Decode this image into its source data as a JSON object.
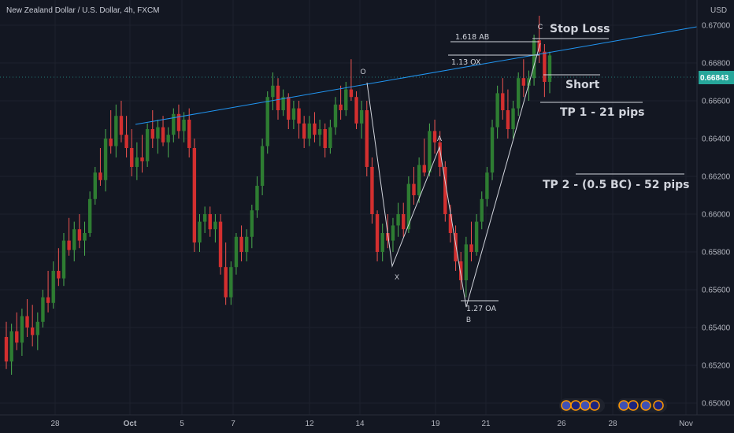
{
  "header": {
    "title": "New Zealand Dollar / U.S. Dollar, 4h, FXCM",
    "currency": "USD"
  },
  "colors": {
    "background": "#131722",
    "up": "#26a69a",
    "up_body": "#2e7d32",
    "down": "#ef5350",
    "down_body": "#d32f2f",
    "trendline": "#2196f3",
    "pattern": "#d1d4dc",
    "price_tag": "#26a69a"
  },
  "current_price": "0.66843",
  "chart_data": {
    "type": "candlestick",
    "ylim": [
      0.6496,
      0.6725
    ],
    "y_ticks": [
      "0.67000",
      "0.66800",
      "0.66600",
      "0.66400",
      "0.66200",
      "0.66000",
      "0.65800",
      "0.65600",
      "0.65400",
      "0.65200",
      "0.65000"
    ],
    "x_ticks": [
      "28",
      "Oct",
      "5",
      "7",
      "12",
      "14",
      "19",
      "21",
      "26",
      "28",
      "Nov"
    ],
    "candles": [
      [
        0.6535,
        0.6543,
        0.6518,
        0.6522
      ],
      [
        0.6522,
        0.6542,
        0.6515,
        0.6538
      ],
      [
        0.6538,
        0.6548,
        0.6528,
        0.6532
      ],
      [
        0.6532,
        0.655,
        0.6525,
        0.6546
      ],
      [
        0.6546,
        0.6555,
        0.6535,
        0.654
      ],
      [
        0.654,
        0.6552,
        0.653,
        0.6536
      ],
      [
        0.6536,
        0.6548,
        0.6528,
        0.6543
      ],
      [
        0.6543,
        0.656,
        0.654,
        0.6556
      ],
      [
        0.6556,
        0.657,
        0.6548,
        0.6553
      ],
      [
        0.6553,
        0.6575,
        0.655,
        0.657
      ],
      [
        0.657,
        0.6582,
        0.6562,
        0.6566
      ],
      [
        0.6566,
        0.659,
        0.6562,
        0.6586
      ],
      [
        0.6586,
        0.6598,
        0.6578,
        0.6581
      ],
      [
        0.6581,
        0.6596,
        0.6575,
        0.6592
      ],
      [
        0.6592,
        0.66,
        0.6582,
        0.6586
      ],
      [
        0.6586,
        0.6596,
        0.6578,
        0.659
      ],
      [
        0.659,
        0.6612,
        0.6588,
        0.6608
      ],
      [
        0.6608,
        0.6625,
        0.6605,
        0.6622
      ],
      [
        0.6622,
        0.6635,
        0.6615,
        0.6618
      ],
      [
        0.6618,
        0.6645,
        0.6612,
        0.664
      ],
      [
        0.664,
        0.6655,
        0.6632,
        0.6636
      ],
      [
        0.6636,
        0.6658,
        0.663,
        0.6652
      ],
      [
        0.6652,
        0.666,
        0.6638,
        0.6642
      ],
      [
        0.6642,
        0.6652,
        0.663,
        0.6635
      ],
      [
        0.6635,
        0.6645,
        0.662,
        0.6625
      ],
      [
        0.6625,
        0.6638,
        0.6618,
        0.663
      ],
      [
        0.663,
        0.6642,
        0.6622,
        0.6628
      ],
      [
        0.6628,
        0.6648,
        0.6625,
        0.6645
      ],
      [
        0.6645,
        0.6655,
        0.6635,
        0.664
      ],
      [
        0.664,
        0.665,
        0.6632,
        0.6646
      ],
      [
        0.6646,
        0.6652,
        0.6636,
        0.6638
      ],
      [
        0.6638,
        0.6646,
        0.663,
        0.6642
      ],
      [
        0.6642,
        0.6656,
        0.6638,
        0.6653
      ],
      [
        0.6653,
        0.6658,
        0.664,
        0.6644
      ],
      [
        0.6644,
        0.6654,
        0.6638,
        0.665
      ],
      [
        0.665,
        0.6656,
        0.663,
        0.6635
      ],
      [
        0.6635,
        0.664,
        0.658,
        0.6585
      ],
      [
        0.6585,
        0.66,
        0.658,
        0.6596
      ],
      [
        0.6596,
        0.6604,
        0.659,
        0.66
      ],
      [
        0.66,
        0.6604,
        0.6588,
        0.6592
      ],
      [
        0.6592,
        0.66,
        0.6585,
        0.6596
      ],
      [
        0.6596,
        0.66,
        0.6568,
        0.6572
      ],
      [
        0.6572,
        0.6585,
        0.6552,
        0.6556
      ],
      [
        0.6556,
        0.6575,
        0.6552,
        0.6572
      ],
      [
        0.6572,
        0.659,
        0.6568,
        0.6588
      ],
      [
        0.6588,
        0.6594,
        0.6575,
        0.658
      ],
      [
        0.658,
        0.6592,
        0.6575,
        0.6588
      ],
      [
        0.6588,
        0.6605,
        0.6582,
        0.6602
      ],
      [
        0.6602,
        0.662,
        0.6598,
        0.6615
      ],
      [
        0.6615,
        0.664,
        0.661,
        0.6636
      ],
      [
        0.6636,
        0.6665,
        0.6632,
        0.6662
      ],
      [
        0.6662,
        0.6675,
        0.6655,
        0.6668
      ],
      [
        0.6668,
        0.6672,
        0.665,
        0.6655
      ],
      [
        0.6655,
        0.6666,
        0.6652,
        0.6662
      ],
      [
        0.6662,
        0.6664,
        0.6645,
        0.665
      ],
      [
        0.665,
        0.666,
        0.6645,
        0.6656
      ],
      [
        0.6656,
        0.666,
        0.664,
        0.6648
      ],
      [
        0.6648,
        0.6652,
        0.6635,
        0.664
      ],
      [
        0.664,
        0.6652,
        0.6636,
        0.6648
      ],
      [
        0.6648,
        0.6654,
        0.6638,
        0.6642
      ],
      [
        0.6642,
        0.665,
        0.6636,
        0.6645
      ],
      [
        0.6645,
        0.6648,
        0.663,
        0.6635
      ],
      [
        0.6635,
        0.665,
        0.6632,
        0.6646
      ],
      [
        0.6646,
        0.6662,
        0.6642,
        0.6658
      ],
      [
        0.6658,
        0.6668,
        0.665,
        0.6655
      ],
      [
        0.6655,
        0.667,
        0.6652,
        0.6666
      ],
      [
        0.6666,
        0.6682,
        0.666,
        0.6662
      ],
      [
        0.6662,
        0.6665,
        0.6645,
        0.6648
      ],
      [
        0.6648,
        0.666,
        0.664,
        0.6655
      ],
      [
        0.6655,
        0.666,
        0.662,
        0.6625
      ],
      [
        0.6625,
        0.663,
        0.6595,
        0.66
      ],
      [
        0.66,
        0.6602,
        0.6575,
        0.658
      ],
      [
        0.658,
        0.6595,
        0.6575,
        0.659
      ],
      [
        0.659,
        0.66,
        0.6582,
        0.6586
      ],
      [
        0.6586,
        0.6598,
        0.658,
        0.6594
      ],
      [
        0.6594,
        0.6606,
        0.6588,
        0.66
      ],
      [
        0.66,
        0.6606,
        0.6588,
        0.6592
      ],
      [
        0.6592,
        0.662,
        0.659,
        0.6616
      ],
      [
        0.6616,
        0.6625,
        0.6605,
        0.661
      ],
      [
        0.661,
        0.663,
        0.6606,
        0.6626
      ],
      [
        0.6626,
        0.664,
        0.662,
        0.6622
      ],
      [
        0.6622,
        0.6648,
        0.662,
        0.6644
      ],
      [
        0.6644,
        0.665,
        0.6632,
        0.6638
      ],
      [
        0.6638,
        0.6644,
        0.662,
        0.6625
      ],
      [
        0.6625,
        0.6628,
        0.6596,
        0.66
      ],
      [
        0.66,
        0.6605,
        0.6585,
        0.659
      ],
      [
        0.659,
        0.6594,
        0.657,
        0.6575
      ],
      [
        0.6575,
        0.658,
        0.656,
        0.6565
      ],
      [
        0.6565,
        0.6588,
        0.6556,
        0.6584
      ],
      [
        0.6584,
        0.6596,
        0.6575,
        0.658
      ],
      [
        0.658,
        0.66,
        0.6578,
        0.6596
      ],
      [
        0.6596,
        0.6612,
        0.6592,
        0.6608
      ],
      [
        0.6608,
        0.6625,
        0.6604,
        0.6622
      ],
      [
        0.6622,
        0.665,
        0.6618,
        0.6646
      ],
      [
        0.6646,
        0.6668,
        0.664,
        0.6664
      ],
      [
        0.6664,
        0.6672,
        0.665,
        0.6655
      ],
      [
        0.6655,
        0.6666,
        0.664,
        0.6645
      ],
      [
        0.6645,
        0.666,
        0.664,
        0.6656
      ],
      [
        0.6656,
        0.6675,
        0.6652,
        0.6672
      ],
      [
        0.6672,
        0.6682,
        0.6662,
        0.6668
      ],
      [
        0.6668,
        0.6676,
        0.666,
        0.6672
      ],
      [
        0.6672,
        0.6695,
        0.6668,
        0.6692
      ],
      [
        0.6692,
        0.6705,
        0.668,
        0.6686
      ],
      [
        0.6686,
        0.669,
        0.6662,
        0.667
      ],
      [
        0.667,
        0.6686,
        0.6664,
        0.6684
      ]
    ]
  },
  "annotations": {
    "stop_loss": "Stop Loss",
    "short": "Short",
    "tp1": "TP 1 - 21 pips",
    "tp2": "TP 2 - (0.5 BC) - 52 pips",
    "ab_ratio": "1.618 AB",
    "ox_ratio": "1.13 OX",
    "oa_ratio": "1.27 OA",
    "point_o": "O",
    "point_x": "X",
    "point_a": "A",
    "point_b": "B",
    "point_c": "C"
  },
  "event_icons": [
    "economic-events-cluster-left",
    "economic-events-cluster-right"
  ]
}
